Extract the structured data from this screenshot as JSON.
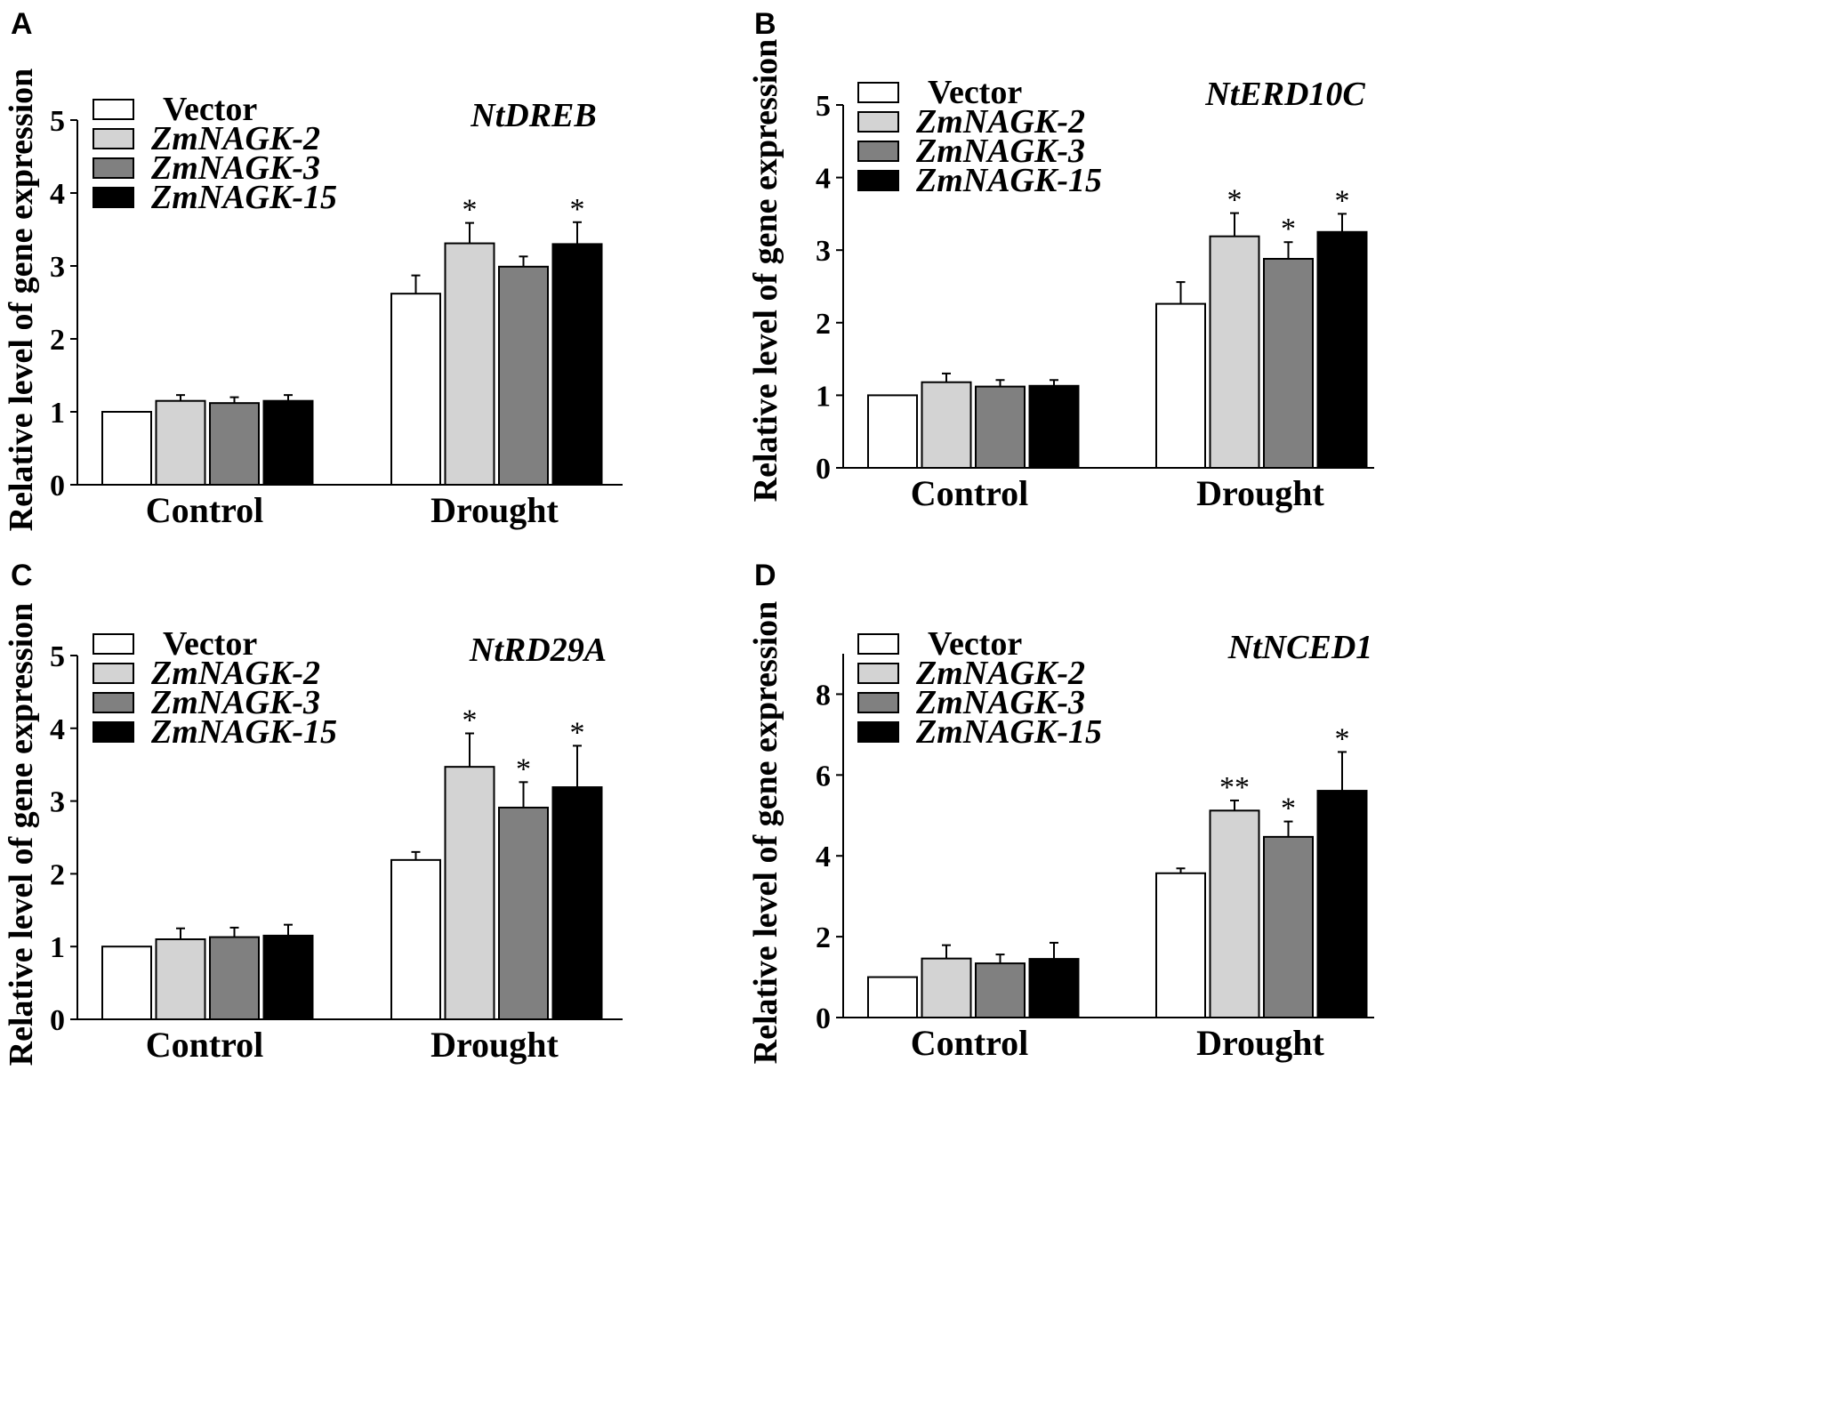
{
  "chart_data": [
    {
      "type": "bar",
      "panel": "A",
      "title": "NtDREB",
      "ylabel": "Relative level of gene expression",
      "xlabel": "",
      "ylim": [
        0,
        5
      ],
      "yticks": [
        0,
        1,
        2,
        3,
        4,
        5
      ],
      "categories": [
        "Control",
        "Drought"
      ],
      "series": [
        {
          "name": "Vector",
          "values": [
            1.0,
            2.62
          ],
          "errors": [
            0.0,
            0.25
          ],
          "sig": [
            "",
            ""
          ]
        },
        {
          "name": "ZmNAGK-2",
          "values": [
            1.15,
            3.31
          ],
          "errors": [
            0.08,
            0.28
          ],
          "sig": [
            "",
            "*"
          ]
        },
        {
          "name": "ZmNAGK-3",
          "values": [
            1.12,
            2.99
          ],
          "errors": [
            0.08,
            0.14
          ],
          "sig": [
            "",
            ""
          ]
        },
        {
          "name": "ZmNAGK-15",
          "values": [
            1.15,
            3.3
          ],
          "errors": [
            0.08,
            0.3
          ],
          "sig": [
            "",
            "*"
          ]
        }
      ]
    },
    {
      "type": "bar",
      "panel": "B",
      "title": "NtERD10C",
      "ylabel": "Relative level of gene expression",
      "xlabel": "",
      "ylim": [
        0,
        5
      ],
      "yticks": [
        0,
        1,
        2,
        3,
        4,
        5
      ],
      "categories": [
        "Control",
        "Drought"
      ],
      "series": [
        {
          "name": "Vector",
          "values": [
            1.0,
            2.26
          ],
          "errors": [
            0.0,
            0.3
          ],
          "sig": [
            "",
            ""
          ]
        },
        {
          "name": "ZmNAGK-2",
          "values": [
            1.18,
            3.19
          ],
          "errors": [
            0.12,
            0.32
          ],
          "sig": [
            "",
            "*"
          ]
        },
        {
          "name": "ZmNAGK-3",
          "values": [
            1.12,
            2.88
          ],
          "errors": [
            0.09,
            0.23
          ],
          "sig": [
            "",
            "*"
          ]
        },
        {
          "name": "ZmNAGK-15",
          "values": [
            1.13,
            3.25
          ],
          "errors": [
            0.08,
            0.25
          ],
          "sig": [
            "",
            "*"
          ]
        }
      ]
    },
    {
      "type": "bar",
      "panel": "C",
      "title": "NtRD29A",
      "ylabel": "Relative level of  gene expression",
      "xlabel": "",
      "ylim": [
        0,
        5
      ],
      "yticks": [
        0,
        1,
        2,
        3,
        4,
        5
      ],
      "categories": [
        "Control",
        "Drought"
      ],
      "series": [
        {
          "name": "Vector",
          "values": [
            1.0,
            2.19
          ],
          "errors": [
            0.0,
            0.11
          ],
          "sig": [
            "",
            ""
          ]
        },
        {
          "name": "ZmNAGK-2",
          "values": [
            1.1,
            3.47
          ],
          "errors": [
            0.15,
            0.46
          ],
          "sig": [
            "",
            "*"
          ]
        },
        {
          "name": "ZmNAGK-3",
          "values": [
            1.13,
            2.91
          ],
          "errors": [
            0.13,
            0.35
          ],
          "sig": [
            "",
            "*"
          ]
        },
        {
          "name": "ZmNAGK-15",
          "values": [
            1.15,
            3.19
          ],
          "errors": [
            0.15,
            0.57
          ],
          "sig": [
            "",
            "*"
          ]
        }
      ]
    },
    {
      "type": "bar",
      "panel": "D",
      "title": "NtNCED1",
      "ylabel": "Relative level of gene expression",
      "xlabel": "",
      "ylim": [
        0,
        9
      ],
      "yticks": [
        0,
        2,
        4,
        6,
        8
      ],
      "categories": [
        "Control",
        "Drought"
      ],
      "series": [
        {
          "name": "Vector",
          "values": [
            1.0,
            3.57
          ],
          "errors": [
            0.0,
            0.12
          ],
          "sig": [
            "",
            ""
          ]
        },
        {
          "name": "ZmNAGK-2",
          "values": [
            1.46,
            5.12
          ],
          "errors": [
            0.33,
            0.25
          ],
          "sig": [
            "",
            "**"
          ]
        },
        {
          "name": "ZmNAGK-3",
          "values": [
            1.34,
            4.47
          ],
          "errors": [
            0.22,
            0.38
          ],
          "sig": [
            "",
            "*"
          ]
        },
        {
          "name": "ZmNAGK-15",
          "values": [
            1.45,
            5.61
          ],
          "errors": [
            0.4,
            0.96
          ],
          "sig": [
            "",
            "*"
          ]
        }
      ]
    }
  ],
  "colors": {
    "Vector": "#ffffff",
    "ZmNAGK-2": "#d3d3d3",
    "ZmNAGK-3": "#808080",
    "ZmNAGK-15": "#000000",
    "axis": "#000000"
  }
}
